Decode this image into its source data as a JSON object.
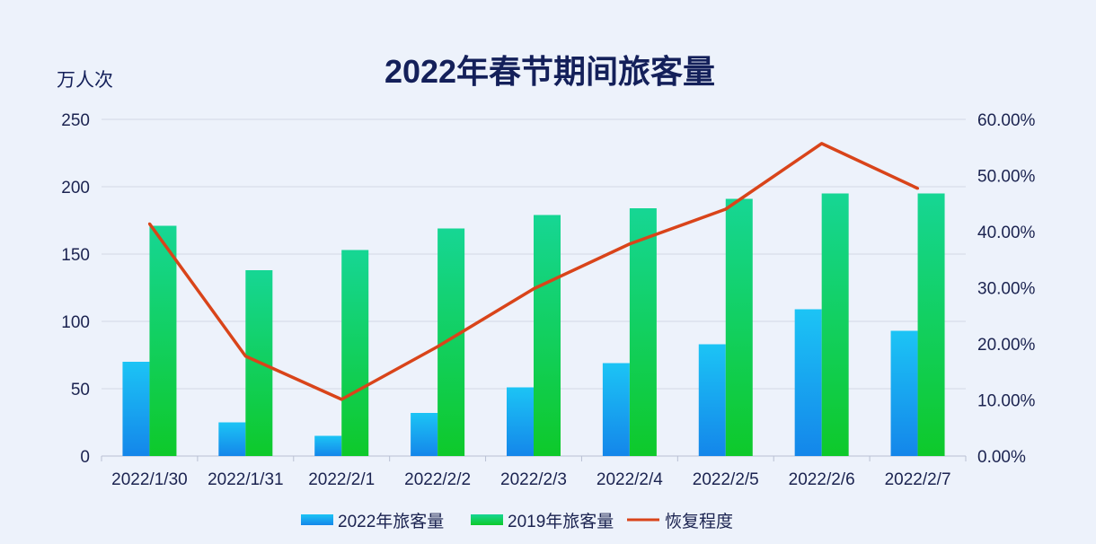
{
  "chart_data": {
    "type": "bar",
    "title": "2022年春节期间旅客量",
    "ylabel": "万人次",
    "ylim": [
      0,
      250
    ],
    "y_ticks": [
      "0",
      "50",
      "100",
      "150",
      "200",
      "250"
    ],
    "y2lim": [
      0,
      60
    ],
    "y2_ticks": [
      "0.00%",
      "10.00%",
      "20.00%",
      "30.00%",
      "40.00%",
      "50.00%",
      "60.00%"
    ],
    "categories": [
      "2022/1/30",
      "2022/1/31",
      "2022/2/1",
      "2022/2/2",
      "2022/2/3",
      "2022/2/4",
      "2022/2/5",
      "2022/2/6",
      "2022/2/7"
    ],
    "series": [
      {
        "name": "2022年旅客量",
        "type": "bar",
        "axis": "left",
        "color": "#1aa3f0",
        "values": [
          70,
          25,
          15,
          32,
          51,
          69,
          83,
          109,
          93
        ]
      },
      {
        "name": "2019年旅客量",
        "type": "bar",
        "axis": "left",
        "color": "#10c84a",
        "values": [
          171,
          138,
          153,
          169,
          179,
          184,
          191,
          195,
          195
        ]
      },
      {
        "name": "恢复程度",
        "type": "line",
        "axis": "right",
        "color": "#d9441a",
        "values": [
          41.4,
          17.8,
          10.1,
          19.5,
          29.8,
          37.8,
          44.0,
          55.7,
          47.7
        ]
      }
    ],
    "grid": true,
    "legend": "bottom-center"
  }
}
